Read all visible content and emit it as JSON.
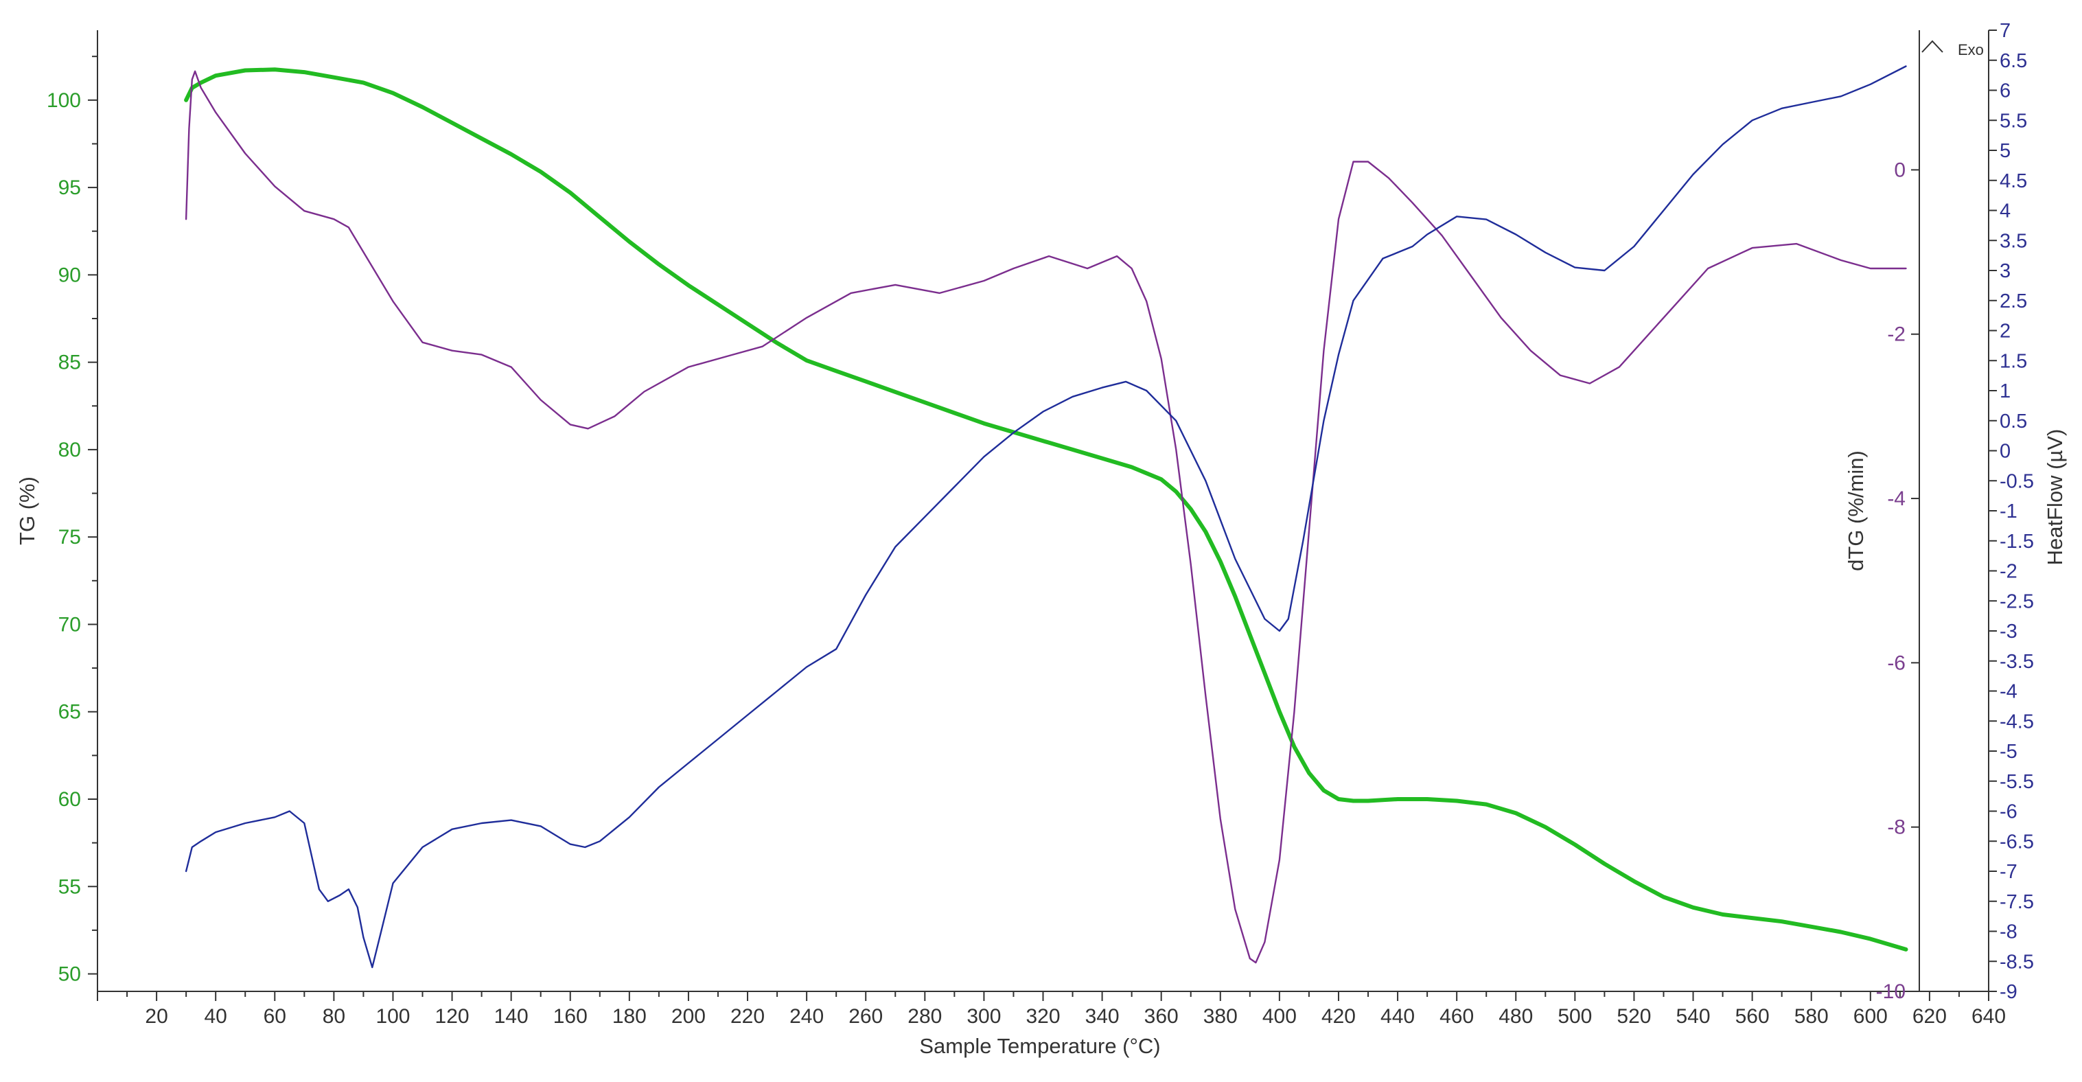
{
  "colors": {
    "tg": "#22bb22",
    "dtg": "#7b2e8e",
    "heatflow": "#1f2d9a",
    "tg_ticks": "#2a9d2a",
    "dtg_ticks": "#7b3f8f",
    "hf_ticks": "#2e3192",
    "axis": "#333333"
  },
  "chart_data": {
    "type": "line",
    "title": "",
    "xlabel": "Sample Temperature (°C)",
    "exo_label": "Exo",
    "exo_icon": "caret-up-icon",
    "grid": false,
    "legend": "none",
    "x_axis": {
      "range": [
        0,
        640
      ],
      "ticks": [
        20,
        40,
        60,
        80,
        100,
        120,
        140,
        160,
        180,
        200,
        220,
        240,
        260,
        280,
        300,
        320,
        340,
        360,
        380,
        400,
        420,
        440,
        460,
        480,
        500,
        520,
        540,
        560,
        580,
        600,
        620,
        640
      ]
    },
    "y_axes": [
      {
        "id": "tg",
        "label": "TG (%)",
        "range": [
          49,
          104
        ],
        "ticks": [
          50,
          55,
          60,
          65,
          70,
          75,
          80,
          85,
          90,
          95,
          100
        ]
      },
      {
        "id": "dtg",
        "label": "dTG (%/min)",
        "range": [
          -10,
          1.7
        ],
        "ticks": [
          -10,
          -8,
          -6,
          -4,
          -2,
          0
        ]
      },
      {
        "id": "heatflow",
        "label": "HeatFlow (µV)",
        "range": [
          -9,
          7
        ],
        "ticks": [
          "-9",
          "-8.5",
          "-8",
          "-7.5",
          "-7",
          "-6.5",
          "-6",
          "-5.5",
          "-5",
          "-4.5",
          "-4",
          "-3.5",
          "-3",
          "-2.5",
          "-2",
          "-1.5",
          "-1",
          "-0.5",
          "0",
          "0.5",
          "1",
          "1.5",
          "2",
          "2.5",
          "3",
          "3.5",
          "4",
          "4.5",
          "5",
          "5.5",
          "6",
          "6.5",
          "7"
        ]
      }
    ],
    "series": [
      {
        "id": "tg",
        "axis": "tg",
        "x": [
          30,
          32,
          35,
          40,
          50,
          60,
          70,
          80,
          90,
          100,
          110,
          120,
          130,
          140,
          150,
          160,
          170,
          180,
          190,
          200,
          210,
          220,
          230,
          240,
          250,
          260,
          270,
          280,
          290,
          300,
          310,
          320,
          330,
          340,
          350,
          360,
          365,
          370,
          375,
          380,
          385,
          390,
          395,
          400,
          405,
          410,
          415,
          420,
          425,
          430,
          440,
          450,
          460,
          470,
          480,
          490,
          500,
          510,
          520,
          530,
          540,
          550,
          560,
          570,
          580,
          590,
          600,
          612
        ],
        "values": [
          100.0,
          100.7,
          101.0,
          101.4,
          101.7,
          101.75,
          101.6,
          101.3,
          101.0,
          100.4,
          99.6,
          98.7,
          97.8,
          96.9,
          95.9,
          94.7,
          93.3,
          91.9,
          90.6,
          89.4,
          88.3,
          87.2,
          86.1,
          85.1,
          84.5,
          83.9,
          83.3,
          82.7,
          82.1,
          81.5,
          81.0,
          80.5,
          80.0,
          79.5,
          79.0,
          78.3,
          77.6,
          76.6,
          75.3,
          73.6,
          71.6,
          69.4,
          67.2,
          65.0,
          63.0,
          61.5,
          60.5,
          60.0,
          59.9,
          59.9,
          60.0,
          60.0,
          59.9,
          59.7,
          59.2,
          58.4,
          57.4,
          56.3,
          55.3,
          54.4,
          53.8,
          53.4,
          53.2,
          53.0,
          52.7,
          52.4,
          52.0,
          51.4
        ]
      },
      {
        "id": "dtg",
        "axis": "dtg",
        "x": [
          30,
          31,
          32,
          33,
          35,
          40,
          50,
          60,
          70,
          80,
          85,
          90,
          100,
          110,
          120,
          130,
          140,
          150,
          160,
          166,
          175,
          185,
          200,
          215,
          225,
          240,
          255,
          270,
          285,
          300,
          310,
          322,
          335,
          345,
          350,
          355,
          360,
          365,
          370,
          375,
          380,
          385,
          390,
          392,
          395,
          400,
          405,
          410,
          415,
          420,
          425,
          430,
          437,
          445,
          455,
          465,
          475,
          485,
          495,
          505,
          515,
          525,
          535,
          545,
          560,
          575,
          590,
          600,
          612
        ],
        "values": [
          -0.6,
          0.5,
          1.1,
          1.2,
          1.0,
          0.7,
          0.2,
          -0.2,
          -0.5,
          -0.6,
          -0.7,
          -1.0,
          -1.6,
          -2.1,
          -2.2,
          -2.25,
          -2.4,
          -2.8,
          -3.1,
          -3.15,
          -3.0,
          -2.7,
          -2.4,
          -2.25,
          -2.15,
          -1.8,
          -1.5,
          -1.4,
          -1.5,
          -1.35,
          -1.2,
          -1.05,
          -1.2,
          -1.05,
          -1.2,
          -1.6,
          -2.3,
          -3.4,
          -4.8,
          -6.4,
          -7.9,
          -9.0,
          -9.6,
          -9.65,
          -9.4,
          -8.4,
          -6.6,
          -4.4,
          -2.2,
          -0.6,
          0.1,
          0.1,
          -0.1,
          -0.4,
          -0.8,
          -1.3,
          -1.8,
          -2.2,
          -2.5,
          -2.6,
          -2.4,
          -2.0,
          -1.6,
          -1.2,
          -0.95,
          -0.9,
          -1.1,
          -1.2,
          -1.2
        ]
      },
      {
        "id": "heatflow",
        "axis": "heatflow",
        "x": [
          30,
          32,
          35,
          40,
          50,
          60,
          65,
          70,
          75,
          78,
          82,
          85,
          88,
          90,
          93,
          96,
          100,
          110,
          120,
          130,
          140,
          150,
          160,
          165,
          170,
          180,
          190,
          200,
          210,
          220,
          230,
          240,
          250,
          260,
          270,
          280,
          290,
          300,
          310,
          320,
          330,
          340,
          348,
          355,
          365,
          375,
          385,
          395,
          400,
          403,
          408,
          415,
          420,
          425,
          435,
          440,
          445,
          450,
          460,
          470,
          480,
          490,
          500,
          510,
          520,
          530,
          540,
          550,
          560,
          570,
          580,
          590,
          600,
          612
        ],
        "values": [
          -7.0,
          -6.6,
          -6.5,
          -6.35,
          -6.2,
          -6.1,
          -6.0,
          -6.2,
          -7.3,
          -7.5,
          -7.4,
          -7.3,
          -7.6,
          -8.1,
          -8.6,
          -8.0,
          -7.2,
          -6.6,
          -6.3,
          -6.2,
          -6.15,
          -6.25,
          -6.55,
          -6.6,
          -6.5,
          -6.1,
          -5.6,
          -5.2,
          -4.8,
          -4.4,
          -4.0,
          -3.6,
          -3.3,
          -2.4,
          -1.6,
          -1.1,
          -0.6,
          -0.1,
          0.3,
          0.65,
          0.9,
          1.05,
          1.15,
          1.0,
          0.5,
          -0.5,
          -1.8,
          -2.8,
          -3.0,
          -2.8,
          -1.5,
          0.5,
          1.6,
          2.5,
          3.2,
          3.3,
          3.4,
          3.6,
          3.9,
          3.85,
          3.6,
          3.3,
          3.05,
          3.0,
          3.4,
          4.0,
          4.6,
          5.1,
          5.5,
          5.7,
          5.8,
          5.9,
          6.1,
          6.4
        ]
      }
    ]
  }
}
